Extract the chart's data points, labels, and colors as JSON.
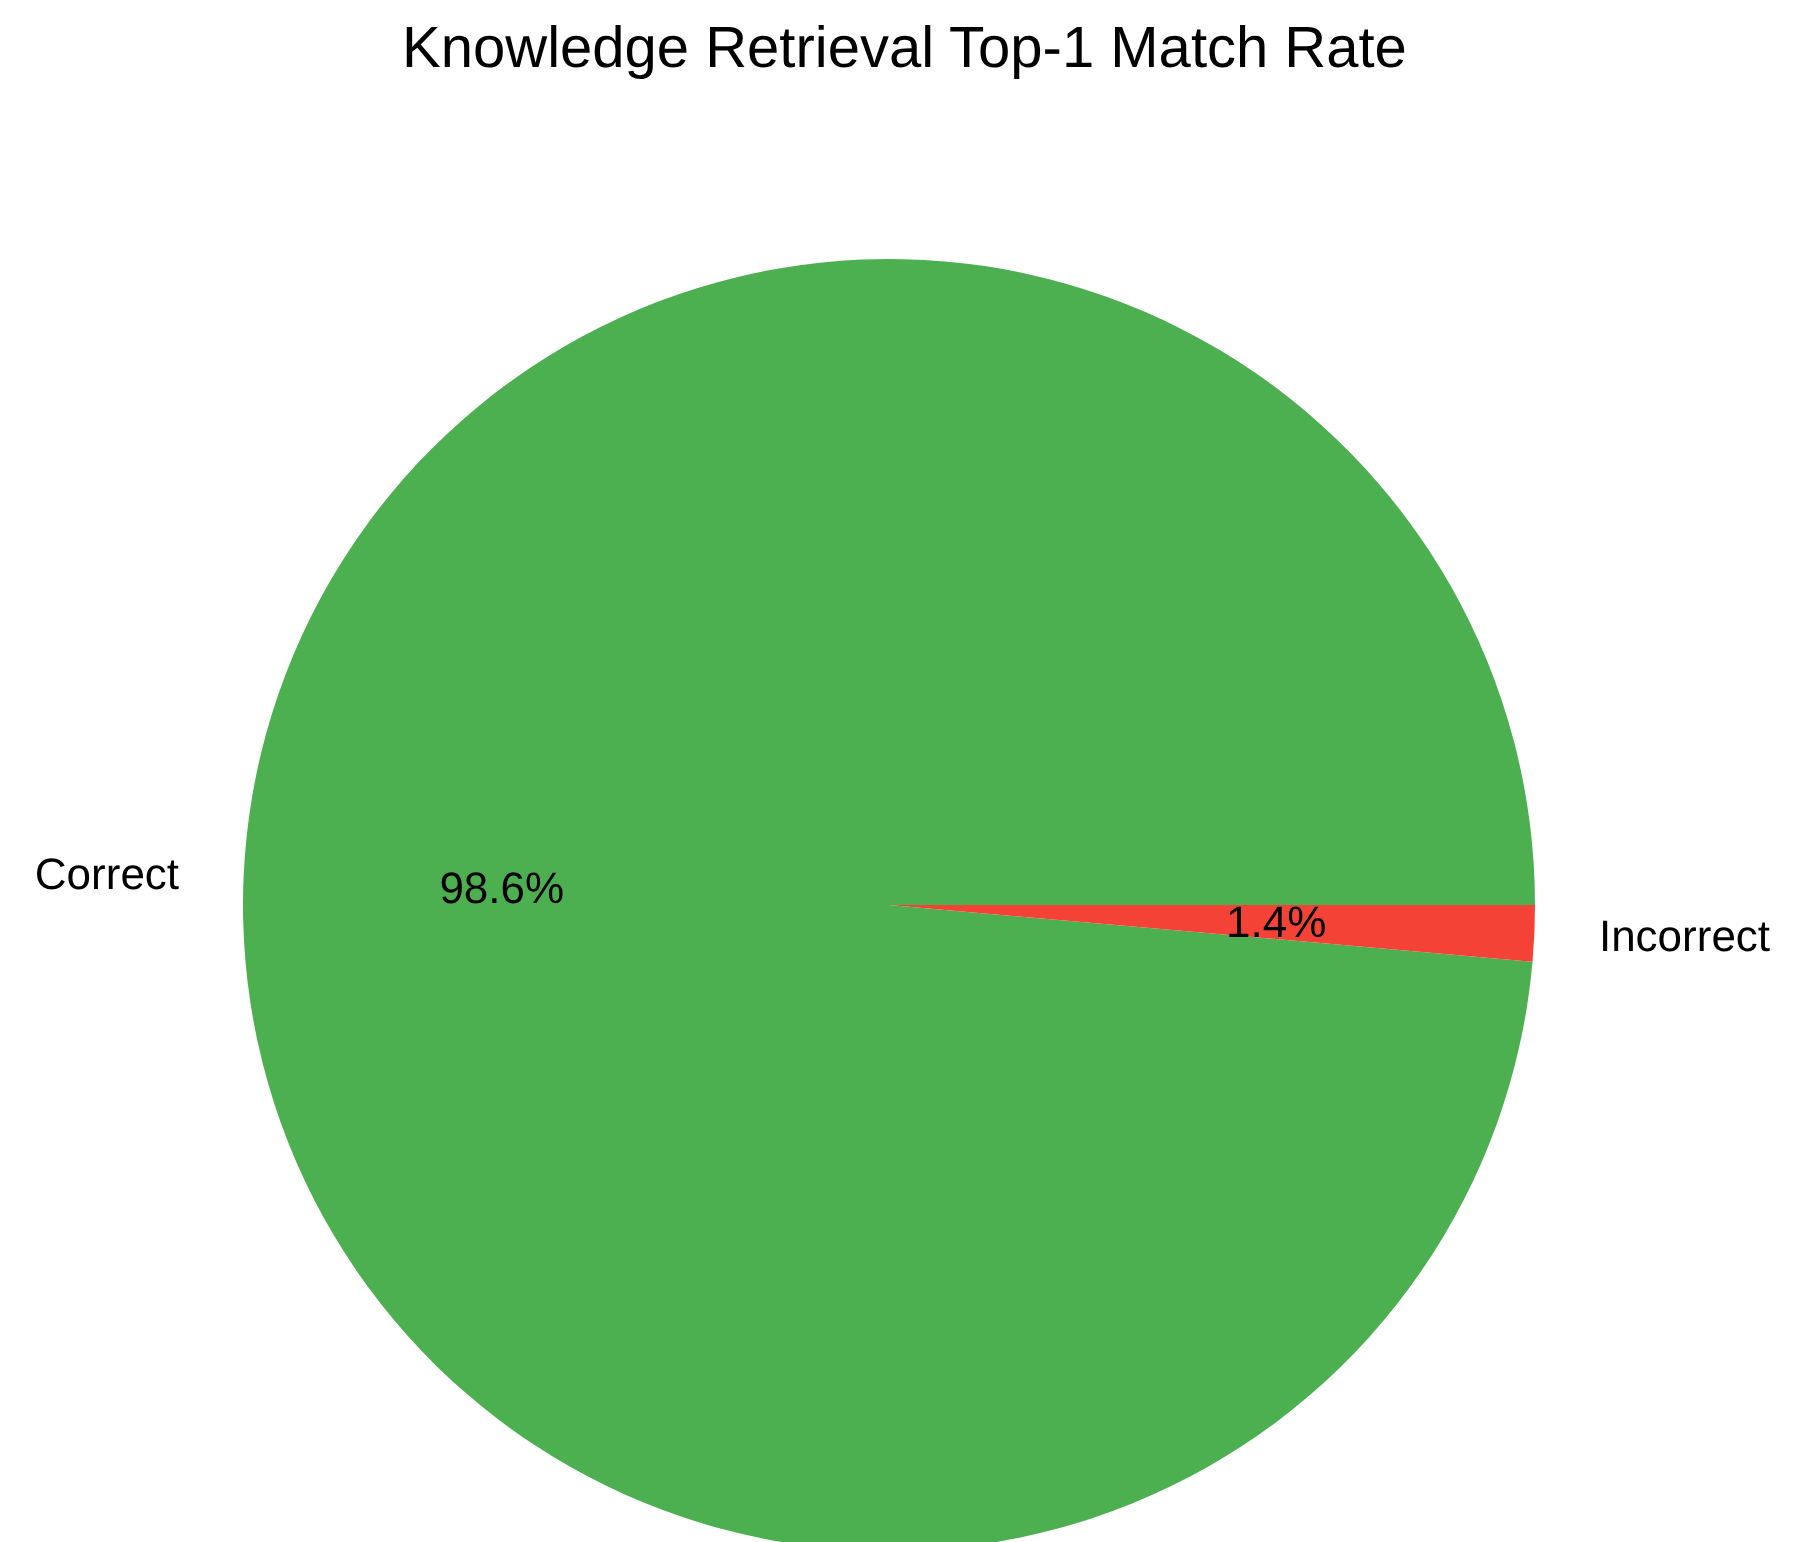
{
  "chart_data": {
    "type": "pie",
    "title": "Knowledge Retrieval Top-1 Match Rate",
    "categories": [
      "Correct",
      "Incorrect"
    ],
    "values": [
      98.6,
      1.4
    ],
    "colors": [
      "#4caf50",
      "#f44336"
    ],
    "value_labels": [
      "98.6%",
      "1.4%"
    ]
  }
}
